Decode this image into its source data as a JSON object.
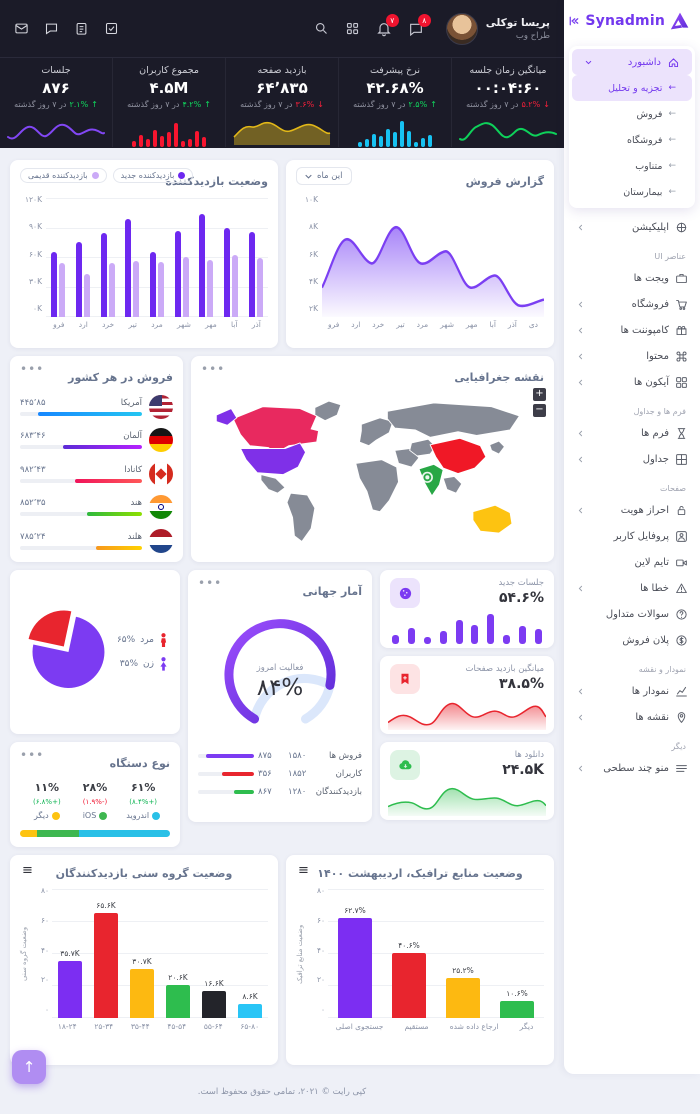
{
  "app": {
    "name": "Synadmin",
    "footer": "کپی رایت © ۲۰۲۱، تمامی حقوق محفوظ است."
  },
  "header": {
    "user": {
      "name": "پریسا توکلی",
      "role": "طراح وب"
    },
    "chat_badge": "۸",
    "bell_badge": "۷"
  },
  "sidebar": {
    "logo": "Synadmin",
    "groups": [
      {
        "name": "dashboard-group",
        "raised": true,
        "items": [
          {
            "id": "dashboard",
            "label": "داشبورد",
            "icon": "home",
            "chevron": "down",
            "active": true
          },
          {
            "id": "analytics",
            "label": "تجزیه و تحلیل",
            "sub": true,
            "active": true
          },
          {
            "id": "sales",
            "label": "فروش",
            "sub": true
          },
          {
            "id": "shop",
            "label": "فروشگاه",
            "sub": true
          },
          {
            "id": "alternative",
            "label": "متناوب",
            "sub": true
          },
          {
            "id": "hospital",
            "label": "بیمارستان",
            "sub": true
          }
        ]
      },
      {
        "name": "app-group",
        "items": [
          {
            "id": "application",
            "label": "اپلیکیشن",
            "icon": "app",
            "chevron": "left"
          }
        ]
      },
      {
        "section": "عناصر UI",
        "items": [
          {
            "id": "widgets",
            "label": "ویجت ها",
            "icon": "widgets"
          },
          {
            "id": "store",
            "label": "فروشگاه",
            "icon": "cart",
            "chevron": "left"
          },
          {
            "id": "components",
            "label": "کامپوننت ها",
            "icon": "gift",
            "chevron": "left"
          },
          {
            "id": "content",
            "label": "محتوا",
            "icon": "command",
            "chevron": "left"
          },
          {
            "id": "icons",
            "label": "آیکون ها",
            "icon": "icons",
            "chevron": "left"
          }
        ]
      },
      {
        "section": "فرم ها و جداول",
        "items": [
          {
            "id": "forms",
            "label": "فرم ها",
            "icon": "hourglass",
            "chevron": "left"
          },
          {
            "id": "tables",
            "label": "جداول",
            "icon": "table",
            "chevron": "left"
          }
        ]
      },
      {
        "section": "صفحات",
        "items": [
          {
            "id": "auth",
            "label": "احراز هویت",
            "icon": "lock",
            "chevron": "left"
          },
          {
            "id": "profile",
            "label": "پروفایل کاربر",
            "icon": "user"
          },
          {
            "id": "timeline",
            "label": "تایم لاین",
            "icon": "timeline"
          },
          {
            "id": "errors",
            "label": "خطا ها",
            "icon": "warning",
            "chevron": "left"
          },
          {
            "id": "faq",
            "label": "سوالات متداول",
            "icon": "question"
          },
          {
            "id": "pricing",
            "label": "پلان فروش",
            "icon": "dollar"
          }
        ]
      },
      {
        "section": "نمودار و نقشه",
        "items": [
          {
            "id": "charts",
            "label": "نمودار ها",
            "icon": "chart",
            "chevron": "left"
          },
          {
            "id": "maps",
            "label": "نقشه ها",
            "icon": "map",
            "chevron": "left"
          }
        ]
      },
      {
        "section": "دیگر",
        "items": [
          {
            "id": "multilevel",
            "label": "منو چند سطحی",
            "icon": "menu",
            "chevron": "left"
          }
        ]
      }
    ]
  },
  "stats": [
    {
      "title": "میانگین زمان جلسه",
      "value": "۰۰:۰۴:۶۰",
      "change": "۵.۲%",
      "trend": "down",
      "period": "در ۷ روز گذشته"
    },
    {
      "title": "نرخ پیشرفت",
      "value": "۴۲.۶۸%",
      "change": "۲.۵%",
      "trend": "up",
      "period": "در ۷ روز گذشته"
    },
    {
      "title": "بازدید صفحه",
      "value": "۶۴٬۸۳۵",
      "change": "۳.۶%",
      "trend": "down",
      "period": "در ۷ روز گذشته"
    },
    {
      "title": "مجموع کاربران",
      "value": "۴.۵M",
      "change": "۴.۲%",
      "trend": "up",
      "period": "در ۷ روز گذشته"
    },
    {
      "title": "جلسات",
      "value": "۸۷۶",
      "change": "۲.۱%",
      "trend": "up",
      "period": "در ۷ روز گذشته"
    }
  ],
  "cards": {
    "visitor": {
      "title": "وضعیت بازدیدکننده"
    },
    "sales": {
      "title": "گزارش فروش",
      "filter": "این ماه"
    },
    "country": {
      "title": "فروش در هر کشور"
    },
    "map": {
      "title": "نقشه جغرافیایی",
      "zoom_in": "+",
      "zoom_out": "−"
    },
    "global": {
      "title": "آمار جهانی",
      "gauge_label": "فعالیت امروز",
      "gauge_value": "۸۴%"
    },
    "device": {
      "title": "نوع دستگاه"
    },
    "age": {
      "title": "وضعیت گروه سنی بازدیدکنندگان",
      "ylabel": "وضعیت گروه سنی"
    },
    "traffic": {
      "title": "وضعیت منابع ترافیک، اردیبهشت ۱۴۰۰",
      "ylabel": "وضعیت منابع ترافیک"
    }
  },
  "chart_data": [
    {
      "id": "visitors",
      "type": "bar",
      "title": "وضعیت بازدیدکننده",
      "categories": [
        "فرو",
        "ارد",
        "خرد",
        "تیر",
        "مرد",
        "شهر",
        "مهر",
        "آبا",
        "آذر"
      ],
      "series": [
        {
          "name": "بازدیدکننده جدید",
          "color": "#6d28f0",
          "values": [
            66,
            76,
            85,
            100,
            66,
            87,
            105,
            91,
            86
          ]
        },
        {
          "name": "بازدیدکننده قدیمی",
          "color": "#cbaaf7",
          "values": [
            55,
            44,
            55,
            57,
            56,
            61,
            58,
            63,
            60
          ]
        }
      ],
      "yticks": [
        "۱۲۰K",
        "۹۰K",
        "۶۰K",
        "۳۰K",
        "۰K"
      ],
      "ylim": [
        0,
        120
      ],
      "grid": true,
      "legend_position": "top-left"
    },
    {
      "id": "sales_report",
      "type": "area",
      "title": "گزارش فروش",
      "filter": "این ماه",
      "x": [
        "فرو",
        "ارد",
        "خرد",
        "تیر",
        "مرد",
        "شهر",
        "مهر",
        "آبا",
        "آذر",
        "دی"
      ],
      "values": [
        4,
        8,
        6,
        9,
        6,
        7,
        4,
        5,
        2.5,
        3
      ],
      "yticks": [
        "۱۰K",
        "۸K",
        "۶K",
        "۴K",
        "۲K"
      ],
      "ylim": [
        2,
        10
      ],
      "color": "#7b3ff2"
    },
    {
      "id": "country_sales",
      "type": "table",
      "title": "فروش در هر کشور",
      "rows": [
        {
          "country": "آمریکا",
          "value": "۴۴۵٬۸۵",
          "pct": 85,
          "flag": "us",
          "color1": "#24c6f2",
          "color2": "#1787ff"
        },
        {
          "country": "آلمان",
          "value": "۶۸۳٬۴۶",
          "pct": 65,
          "flag": "de",
          "color1": "#b621fe",
          "color2": "#5b2bd6"
        },
        {
          "country": "کانادا",
          "value": "۹۸۲٬۴۳",
          "pct": 55,
          "flag": "ca",
          "color1": "#ff5858",
          "color2": "#f0145a"
        },
        {
          "country": "هند",
          "value": "۸۵۲٬۳۵",
          "pct": 45,
          "flag": "in",
          "color1": "#8ee000",
          "color2": "#2db83d"
        },
        {
          "country": "هلند",
          "value": "۷۸۵٬۲۴",
          "pct": 38,
          "flag": "nl",
          "color1": "#ffd200",
          "color2": "#f7971e"
        }
      ]
    },
    {
      "id": "geo_map",
      "type": "map",
      "title": "نقشه جغرافیایی",
      "highlighted": [
        {
          "region": "کانادا",
          "color": "#e8295f"
        },
        {
          "region": "آمریکا",
          "color": "#7f30e8"
        },
        {
          "region": "چین",
          "color": "#f01826"
        },
        {
          "region": "هند",
          "color": "#28a745"
        },
        {
          "region": "استرالیا",
          "color": "#fdc311"
        }
      ],
      "base_color": "#868b96"
    },
    {
      "id": "global_stats",
      "type": "gauge",
      "title": "آمار جهانی",
      "label": "فعالیت امروز",
      "value": 84,
      "value_text": "۸۴%",
      "color": "#7c3bf2",
      "track_color": "#dbe7fb",
      "rows": [
        {
          "label": "فروش ها",
          "n1": "۱۵۸۰",
          "n2": "۸۷۵",
          "pct": 85,
          "color": "#7c3bf2"
        },
        {
          "label": "کاربران",
          "n1": "۱۸۵۲",
          "n2": "۳۵۶",
          "pct": 58,
          "color": "#e8252e"
        },
        {
          "label": "بازدیدکنندگان",
          "n1": "۱۲۸۰",
          "n2": "۸۶۷",
          "pct": 35,
          "color": "#2ebd4e"
        }
      ]
    },
    {
      "id": "gender",
      "type": "pie",
      "slices": [
        {
          "label": "مرد",
          "value_text": "۶۵%",
          "value": 65,
          "legend_color": "#e8252e",
          "slice_color": "#7c3bf2"
        },
        {
          "label": "زن",
          "value_text": "۳۵%",
          "value": 35,
          "legend_color": "#7c3bf2",
          "slice_color": "#e8252e"
        }
      ]
    },
    {
      "id": "device_type",
      "type": "bar",
      "title": "نوع دستگاه",
      "items": [
        {
          "label": "اندروید",
          "pct": "۶۱%",
          "value": 61,
          "change": "(+۸.۴%)",
          "change_dir": "up",
          "color": "#29c0e7"
        },
        {
          "label": "iOS",
          "pct": "۲۸%",
          "value": 28,
          "change": "(-۱.۹%)",
          "change_dir": "down",
          "color": "#3eb750"
        },
        {
          "label": "دیگر",
          "pct": "۱۱%",
          "value": 11,
          "change": "(+۶.۸%)",
          "change_dir": "up",
          "color": "#fdc311"
        }
      ]
    },
    {
      "id": "mini_cards",
      "type": "bar",
      "items": [
        {
          "title": "جلسات جدید",
          "value": "۵۴.۶%",
          "icon": "disc",
          "color": "#7c3bf2",
          "spark": [
            10,
            12,
            6,
            20,
            13,
            16,
            9,
            5,
            11,
            6
          ]
        },
        {
          "title": "میانگین بازدید صفحات",
          "value": "۳۸.۵%",
          "icon": "bookmark",
          "color": "#e8252e"
        },
        {
          "title": "دانلود ها",
          "value": "۲۴.۵K",
          "icon": "cloud",
          "color": "#2ebd4e"
        }
      ]
    },
    {
      "id": "age_groups",
      "type": "bar",
      "title": "وضعیت گروه سنی بازدیدکنندگان",
      "ylabel": "وضعیت گروه سنی",
      "categories": [
        "۱۸-۲۴",
        "۲۵-۳۴",
        "۳۵-۴۴",
        "۴۵-۵۴",
        "۵۵-۶۴",
        "۶۵-۸۰"
      ],
      "values": [
        35.7,
        65.6,
        30.7,
        20.6,
        16.6,
        8.6
      ],
      "labels": [
        "۳۵.۷K",
        "۶۵.۶K",
        "۳۰.۷K",
        "۲۰.۶K",
        "۱۶.۶K",
        "۸.۶K"
      ],
      "colors": [
        "#7c2ef2",
        "#e8252e",
        "#fdb911",
        "#2ebd4e",
        "#23242a",
        "#29c5f6"
      ],
      "yticks": [
        "۸۰",
        "۶۰",
        "۴۰",
        "۲۰",
        "۰"
      ],
      "ylim": [
        0,
        80
      ],
      "grid": true
    },
    {
      "id": "traffic_sources",
      "type": "bar",
      "title": "وضعیت منابع ترافیک، اردیبهشت ۱۴۰۰",
      "ylabel": "وضعیت منابع ترافیک",
      "categories": [
        "جستجوی اصلی",
        "مستقیم",
        "ارجاع داده شده",
        "دیگر"
      ],
      "values": [
        62.7,
        40.6,
        25.2,
        10.6
      ],
      "labels": [
        "۶۲.۷%",
        "۴۰.۶%",
        "۲۵.۲%",
        "۱۰.۶%"
      ],
      "colors": [
        "#7c2ef2",
        "#e8252e",
        "#fdb911",
        "#2ebd4e"
      ],
      "yticks": [
        "۸۰",
        "۶۰",
        "۴۰",
        "۲۰",
        "۰"
      ],
      "ylim": [
        0,
        80
      ],
      "grid": true
    }
  ]
}
